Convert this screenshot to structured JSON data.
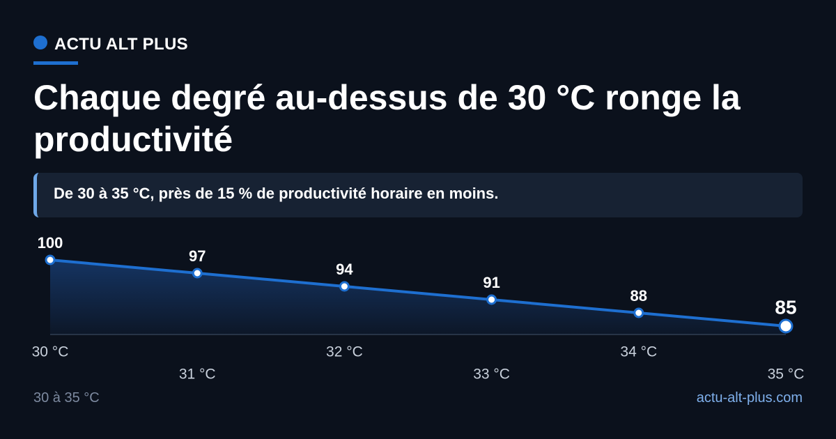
{
  "brand": "ACTU ALT PLUS",
  "chart_data": {
    "type": "line",
    "title": "Chaque degré au-dessus de 30 °C ronge la productivité",
    "subtitle": "De 30 à 35 °C, près de 15 % de productivité horaire en moins.",
    "categories": [
      "30 °C",
      "31 °C",
      "32 °C",
      "33 °C",
      "34 °C",
      "35 °C"
    ],
    "values": [
      100,
      97,
      94,
      91,
      88,
      85
    ],
    "color": "#1e6fd0"
  },
  "footer": {
    "left": "30 à 35 °C",
    "right": "actu-alt-plus.com"
  }
}
